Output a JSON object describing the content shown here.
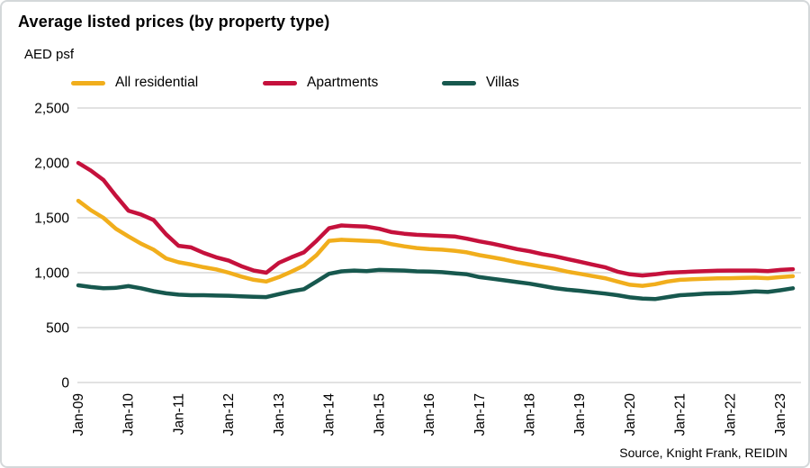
{
  "header": {
    "title": "Average listed prices (by property type)",
    "unit_label": "AED psf"
  },
  "source_note": "Source, Knight Frank, REIDIN",
  "colors": {
    "grid": "#d9d9d9",
    "frame_border": "#d4d8da",
    "text": "#000000",
    "all_residential": "#f1ae1c",
    "apartments": "#c5113c",
    "villas": "#17584e"
  },
  "chart_data": {
    "type": "line",
    "title": "Average listed prices (by property type)",
    "xlabel": "",
    "ylabel": "AED psf",
    "ylim": [
      0,
      2500
    ],
    "grid": "horizontal",
    "legend_position": "top",
    "y_ticks": [
      2500,
      2000,
      1500,
      1000,
      500,
      0
    ],
    "y_tick_labels": [
      "2,500",
      "2,000",
      "1,500",
      "1,000",
      "500",
      "0"
    ],
    "x": [
      "Jan-09",
      "Apr-09",
      "Jul-09",
      "Oct-09",
      "Jan-10",
      "Apr-10",
      "Jul-10",
      "Oct-10",
      "Jan-11",
      "Apr-11",
      "Jul-11",
      "Oct-11",
      "Jan-12",
      "Apr-12",
      "Jul-12",
      "Oct-12",
      "Jan-13",
      "Apr-13",
      "Jul-13",
      "Oct-13",
      "Jan-14",
      "Apr-14",
      "Jul-14",
      "Oct-14",
      "Jan-15",
      "Apr-15",
      "Jul-15",
      "Oct-15",
      "Jan-16",
      "Apr-16",
      "Jul-16",
      "Oct-16",
      "Jan-17",
      "Apr-17",
      "Jul-17",
      "Oct-17",
      "Jan-18",
      "Apr-18",
      "Jul-18",
      "Oct-18",
      "Jan-19",
      "Apr-19",
      "Jul-19",
      "Oct-19",
      "Jan-20",
      "Apr-20",
      "Jul-20",
      "Oct-20",
      "Jan-21",
      "Apr-21",
      "Jul-21",
      "Oct-21",
      "Jan-22",
      "Apr-22",
      "Jul-22",
      "Oct-22",
      "Jan-23",
      "Apr-23"
    ],
    "x_tick_labels": [
      "Jan-09",
      "Jan-10",
      "Jan-11",
      "Jan-12",
      "Jan-13",
      "Jan-14",
      "Jan-15",
      "Jan-16",
      "Jan-17",
      "Jan-18",
      "Jan-19",
      "Jan-20",
      "Jan-21",
      "Jan-22",
      "Jan-23"
    ],
    "x_tick_every": 4,
    "series": [
      {
        "name": "All residential",
        "color": "#f1ae1c",
        "values": [
          1655,
          1570,
          1500,
          1400,
          1330,
          1265,
          1210,
          1130,
          1095,
          1075,
          1050,
          1030,
          1000,
          965,
          935,
          920,
          960,
          1010,
          1065,
          1160,
          1290,
          1300,
          1295,
          1290,
          1285,
          1260,
          1240,
          1225,
          1215,
          1210,
          1200,
          1185,
          1160,
          1140,
          1120,
          1095,
          1075,
          1055,
          1035,
          1010,
          990,
          970,
          950,
          920,
          890,
          880,
          895,
          920,
          935,
          940,
          945,
          948,
          950,
          953,
          955,
          950,
          960,
          968
        ]
      },
      {
        "name": "Apartments",
        "color": "#c5113c",
        "values": [
          2000,
          1930,
          1845,
          1700,
          1565,
          1530,
          1480,
          1350,
          1245,
          1230,
          1180,
          1140,
          1110,
          1060,
          1020,
          1000,
          1090,
          1140,
          1185,
          1290,
          1405,
          1430,
          1425,
          1420,
          1400,
          1370,
          1355,
          1345,
          1340,
          1335,
          1330,
          1310,
          1285,
          1265,
          1240,
          1215,
          1195,
          1170,
          1150,
          1125,
          1100,
          1075,
          1050,
          1010,
          985,
          975,
          985,
          1000,
          1005,
          1010,
          1015,
          1018,
          1020,
          1020,
          1020,
          1015,
          1025,
          1032
        ]
      },
      {
        "name": "Villas",
        "color": "#17584e",
        "values": [
          885,
          870,
          858,
          862,
          878,
          858,
          832,
          812,
          800,
          795,
          795,
          792,
          790,
          785,
          780,
          778,
          805,
          830,
          850,
          920,
          990,
          1012,
          1020,
          1015,
          1025,
          1022,
          1020,
          1012,
          1010,
          1005,
          995,
          985,
          960,
          945,
          930,
          915,
          900,
          880,
          860,
          845,
          835,
          822,
          810,
          795,
          775,
          765,
          760,
          778,
          795,
          802,
          810,
          812,
          815,
          822,
          830,
          825,
          840,
          858
        ]
      }
    ]
  }
}
